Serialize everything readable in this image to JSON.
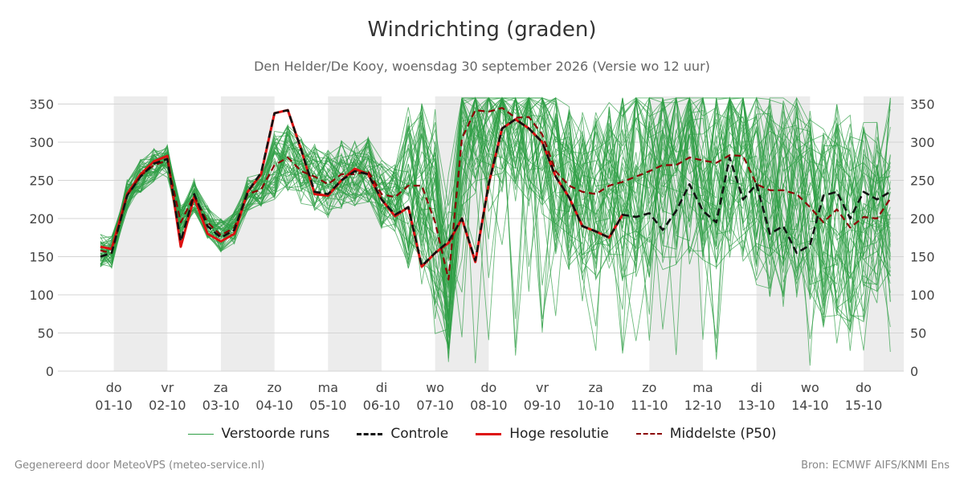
{
  "header": {
    "title": "Windrichting (graden)",
    "subtitle": "Den Helder/De Kooy, woensdag 30 september 2026 (Versie wo 12 uur)"
  },
  "footer": {
    "left": "Gegenereerd door MeteoVPS (meteo-service.nl)",
    "right": "Bron: ECMWF AIFS/KNMI Ens"
  },
  "legend": {
    "ensemble": "Verstoorde runs",
    "control": "Controle",
    "hires": "Hoge resolutie",
    "median": "Middelste (P50)"
  },
  "colors": {
    "ensemble": "#2e9e44",
    "control": "#111111",
    "hires": "#dd1111",
    "median": "#8b0000",
    "shade": "#ececec",
    "grid": "#d4d4d4"
  },
  "chart_data": {
    "type": "line",
    "title": "Windrichting (graden)",
    "ylim": [
      0,
      360
    ],
    "yticks": [
      0,
      50,
      100,
      150,
      200,
      250,
      300,
      350
    ],
    "xlim": [
      0,
      14.75
    ],
    "grid": true,
    "legend_position": "bottom",
    "xticks": [
      {
        "x": 0,
        "day": "do",
        "date": "01-10"
      },
      {
        "x": 1,
        "day": "vr",
        "date": "02-10"
      },
      {
        "x": 2,
        "day": "za",
        "date": "03-10"
      },
      {
        "x": 3,
        "day": "zo",
        "date": "04-10"
      },
      {
        "x": 4,
        "day": "ma",
        "date": "05-10"
      },
      {
        "x": 5,
        "day": "di",
        "date": "06-10"
      },
      {
        "x": 6,
        "day": "wo",
        "date": "07-10"
      },
      {
        "x": 7,
        "day": "do",
        "date": "08-10"
      },
      {
        "x": 8,
        "day": "vr",
        "date": "09-10"
      },
      {
        "x": 9,
        "day": "za",
        "date": "10-10"
      },
      {
        "x": 10,
        "day": "zo",
        "date": "11-10"
      },
      {
        "x": 11,
        "day": "ma",
        "date": "12-10"
      },
      {
        "x": 12,
        "day": "di",
        "date": "13-10"
      },
      {
        "x": 13,
        "day": "wo",
        "date": "14-10"
      },
      {
        "x": 14,
        "day": "do",
        "date": "15-10"
      }
    ],
    "shaded_days": [
      [
        0,
        1
      ],
      [
        2,
        3
      ],
      [
        4,
        5
      ],
      [
        6,
        7
      ],
      [
        10,
        11
      ],
      [
        12,
        13
      ],
      [
        14,
        14.75
      ]
    ],
    "series": [
      {
        "name": "Controle",
        "points": [
          [
            -0.25,
            150
          ],
          [
            -0.04,
            155
          ],
          [
            0.25,
            230
          ],
          [
            0.5,
            255
          ],
          [
            0.75,
            272
          ],
          [
            1.0,
            278
          ],
          [
            1.25,
            170
          ],
          [
            1.5,
            232
          ],
          [
            1.75,
            190
          ],
          [
            2.0,
            175
          ],
          [
            2.25,
            185
          ],
          [
            2.5,
            235
          ],
          [
            2.75,
            260
          ],
          [
            3.0,
            338
          ],
          [
            3.25,
            342
          ],
          [
            3.5,
            290
          ],
          [
            3.75,
            235
          ],
          [
            4.0,
            232
          ],
          [
            4.25,
            250
          ],
          [
            4.5,
            262
          ],
          [
            4.75,
            258
          ],
          [
            5.0,
            225
          ],
          [
            5.25,
            205
          ],
          [
            5.5,
            215
          ],
          [
            5.75,
            138
          ],
          [
            6.0,
            155
          ],
          [
            6.25,
            170
          ],
          [
            6.5,
            200
          ],
          [
            6.75,
            145
          ],
          [
            7.0,
            245
          ],
          [
            7.25,
            318
          ],
          [
            7.5,
            330
          ],
          [
            7.75,
            318
          ],
          [
            8.0,
            300
          ],
          [
            8.25,
            255
          ],
          [
            8.5,
            228
          ],
          [
            8.75,
            190
          ],
          [
            9.0,
            183
          ],
          [
            9.25,
            175
          ],
          [
            9.5,
            205
          ],
          [
            9.75,
            202
          ],
          [
            10.0,
            207
          ],
          [
            10.25,
            185
          ],
          [
            10.5,
            210
          ],
          [
            10.75,
            245
          ],
          [
            11.0,
            210
          ],
          [
            11.25,
            195
          ],
          [
            11.5,
            280
          ],
          [
            11.75,
            225
          ],
          [
            12.0,
            245
          ],
          [
            12.25,
            180
          ],
          [
            12.5,
            190
          ],
          [
            12.75,
            155
          ],
          [
            13.0,
            165
          ],
          [
            13.25,
            230
          ],
          [
            13.5,
            235
          ],
          [
            13.75,
            200
          ],
          [
            14.0,
            235
          ],
          [
            14.25,
            225
          ],
          [
            14.5,
            235
          ]
        ]
      },
      {
        "name": "Hoge resolutie",
        "points": [
          [
            -0.25,
            163
          ],
          [
            -0.04,
            160
          ],
          [
            0.25,
            232
          ],
          [
            0.5,
            258
          ],
          [
            0.75,
            275
          ],
          [
            1.0,
            282
          ],
          [
            1.25,
            163
          ],
          [
            1.5,
            228
          ],
          [
            1.75,
            180
          ],
          [
            2.0,
            170
          ],
          [
            2.25,
            180
          ],
          [
            2.5,
            235
          ],
          [
            2.75,
            258
          ],
          [
            3.0,
            338
          ],
          [
            3.25,
            342
          ],
          [
            3.5,
            290
          ],
          [
            3.75,
            232
          ],
          [
            4.0,
            230
          ],
          [
            4.25,
            250
          ],
          [
            4.5,
            265
          ],
          [
            4.75,
            258
          ],
          [
            5.0,
            225
          ],
          [
            5.25,
            203
          ],
          [
            5.5,
            215
          ],
          [
            5.75,
            137
          ],
          [
            6.0,
            155
          ],
          [
            6.25,
            168
          ],
          [
            6.5,
            200
          ],
          [
            6.75,
            143
          ],
          [
            7.0,
            245
          ],
          [
            7.25,
            318
          ],
          [
            7.5,
            330
          ],
          [
            7.75,
            318
          ],
          [
            8.0,
            300
          ],
          [
            8.25,
            255
          ],
          [
            8.5,
            228
          ],
          [
            8.75,
            190
          ],
          [
            9.0,
            183
          ],
          [
            9.25,
            175
          ],
          [
            9.5,
            205
          ]
        ]
      },
      {
        "name": "Middelste (P50)",
        "points": [
          [
            -0.25,
            158
          ],
          [
            -0.04,
            155
          ],
          [
            0.25,
            230
          ],
          [
            0.5,
            256
          ],
          [
            0.75,
            270
          ],
          [
            1.0,
            276
          ],
          [
            1.25,
            195
          ],
          [
            1.5,
            230
          ],
          [
            1.75,
            195
          ],
          [
            2.0,
            178
          ],
          [
            2.25,
            188
          ],
          [
            2.5,
            232
          ],
          [
            2.75,
            238
          ],
          [
            3.0,
            270
          ],
          [
            3.25,
            280
          ],
          [
            3.5,
            262
          ],
          [
            3.75,
            255
          ],
          [
            4.0,
            245
          ],
          [
            4.25,
            258
          ],
          [
            4.5,
            258
          ],
          [
            4.75,
            262
          ],
          [
            5.0,
            232
          ],
          [
            5.25,
            228
          ],
          [
            5.5,
            243
          ],
          [
            5.75,
            243
          ],
          [
            6.0,
            195
          ],
          [
            6.25,
            120
          ],
          [
            6.5,
            305
          ],
          [
            6.75,
            342
          ],
          [
            7.0,
            340
          ],
          [
            7.25,
            345
          ],
          [
            7.5,
            332
          ],
          [
            7.75,
            333
          ],
          [
            8.0,
            310
          ],
          [
            8.25,
            262
          ],
          [
            8.5,
            243
          ],
          [
            8.75,
            235
          ],
          [
            9.0,
            232
          ],
          [
            9.25,
            243
          ],
          [
            9.5,
            248
          ],
          [
            9.75,
            255
          ],
          [
            10.0,
            262
          ],
          [
            10.25,
            270
          ],
          [
            10.5,
            270
          ],
          [
            10.75,
            280
          ],
          [
            11.0,
            276
          ],
          [
            11.25,
            273
          ],
          [
            11.5,
            283
          ],
          [
            11.75,
            282
          ],
          [
            12.0,
            245
          ],
          [
            12.25,
            237
          ],
          [
            12.5,
            237
          ],
          [
            12.75,
            232
          ],
          [
            13.0,
            215
          ],
          [
            13.25,
            195
          ],
          [
            13.5,
            212
          ],
          [
            13.75,
            188
          ],
          [
            14.0,
            202
          ],
          [
            14.25,
            200
          ],
          [
            14.5,
            226
          ]
        ]
      }
    ],
    "ensemble_members": 50
  }
}
